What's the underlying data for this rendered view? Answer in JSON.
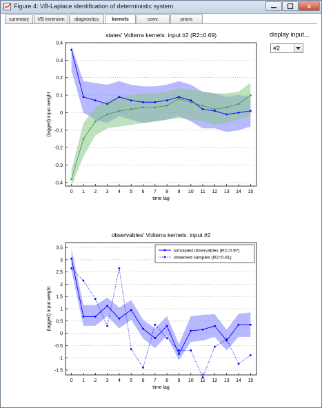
{
  "window": {
    "title": "Figure 4: VB-Laplace identification of deterministic system",
    "close_glyph": "x"
  },
  "tabs": [
    {
      "label": "summary",
      "active": false
    },
    {
      "label": "VB inversion",
      "active": false
    },
    {
      "label": "diagnostics",
      "active": false
    },
    {
      "label": "kernels",
      "active": true
    },
    {
      "label": "conv.",
      "active": false
    },
    {
      "label": "priors",
      "active": false
    }
  ],
  "display_input": {
    "label": "display input...",
    "selected": "#2"
  },
  "colors": {
    "blue": "#0000ff",
    "blue_band": "#8080ff",
    "green": "#4f9a4f",
    "green_band": "#88c888"
  },
  "chart_data": [
    {
      "type": "line",
      "title": "states' Volterra kernels: input #2 (R2=0.69)",
      "xlabel": "time lag",
      "ylabel": "(lagged) input weight",
      "x": [
        0,
        1,
        2,
        3,
        4,
        5,
        6,
        7,
        8,
        9,
        10,
        11,
        12,
        13,
        14,
        15
      ],
      "xlim": [
        -0.5,
        15.5
      ],
      "ylim": [
        -0.42,
        0.4
      ],
      "yticks": [
        -0.4,
        -0.3,
        -0.2,
        -0.1,
        0,
        0.1,
        0.2,
        0.3,
        0.4
      ],
      "ytick_labels": [
        "-0.4",
        "-0.3",
        "-0.2",
        "-0.1",
        "0",
        "0.1",
        "0.2",
        "0.3",
        "0.4"
      ],
      "xtick_labels": [
        "0",
        "1",
        "2",
        "3",
        "4",
        "5",
        "6",
        "7",
        "8",
        "9",
        "10",
        "11",
        "12",
        "13",
        "14",
        "15"
      ],
      "grid": "horizontal dotted",
      "series": [
        {
          "color": "blue",
          "marker": "dot",
          "values": [
            0.36,
            0.09,
            0.07,
            0.05,
            0.09,
            0.07,
            0.06,
            0.06,
            0.07,
            0.09,
            0.07,
            0.02,
            0.01,
            -0.01,
            0.0,
            0.01
          ],
          "lower": [
            0.24,
            0.0,
            -0.04,
            -0.06,
            -0.02,
            -0.04,
            -0.06,
            -0.05,
            -0.04,
            -0.02,
            -0.05,
            -0.09,
            -0.09,
            -0.11,
            -0.1,
            -0.08
          ],
          "upper": [
            0.38,
            0.18,
            0.17,
            0.16,
            0.18,
            0.16,
            0.15,
            0.15,
            0.16,
            0.18,
            0.16,
            0.12,
            0.11,
            0.09,
            0.1,
            0.09
          ]
        },
        {
          "color": "green",
          "marker": "dot",
          "values": [
            -0.38,
            -0.15,
            -0.05,
            -0.01,
            0.01,
            0.02,
            0.03,
            0.03,
            0.04,
            0.08,
            0.06,
            0.04,
            0.02,
            0.03,
            0.05,
            0.1
          ],
          "lower": [
            -0.42,
            -0.25,
            -0.13,
            -0.09,
            -0.08,
            -0.07,
            -0.06,
            -0.05,
            -0.04,
            -0.03,
            -0.04,
            -0.05,
            -0.07,
            -0.06,
            -0.04,
            -0.02
          ],
          "upper": [
            -0.33,
            -0.06,
            0.03,
            0.07,
            0.09,
            0.1,
            0.11,
            0.11,
            0.12,
            0.14,
            0.13,
            0.12,
            0.11,
            0.11,
            0.12,
            0.17
          ]
        }
      ]
    },
    {
      "type": "line",
      "title": "observables' Volterra kernels: input #2",
      "xlabel": "time lag",
      "ylabel": "(lagged) input weight",
      "x": [
        0,
        1,
        2,
        3,
        4,
        5,
        6,
        7,
        8,
        9,
        10,
        11,
        12,
        13,
        14,
        15
      ],
      "xlim": [
        -0.5,
        15.5
      ],
      "ylim": [
        -1.7,
        3.7
      ],
      "yticks": [
        -1.5,
        -1,
        -0.5,
        0,
        0.5,
        1,
        1.5,
        2,
        2.5,
        3,
        3.5
      ],
      "ytick_labels": [
        "-1.5",
        "-1",
        "-0.5",
        "0",
        "0.5",
        "1",
        "1.5",
        "2",
        "2.5",
        "3",
        "3.5"
      ],
      "xtick_labels": [
        "0",
        "1",
        "2",
        "3",
        "4",
        "5",
        "6",
        "7",
        "8",
        "9",
        "10",
        "11",
        "12",
        "13",
        "14",
        "15"
      ],
      "grid": "horizontal dotted",
      "legend": {
        "position": "top-right",
        "entries": [
          "simulated observables (R2=0.97)",
          "observed samples (R2=0.91)"
        ]
      },
      "series": [
        {
          "name": "simulated observables (R2=0.97)",
          "color": "blue",
          "style": "solid",
          "marker": "dot",
          "values": [
            3.05,
            0.68,
            0.68,
            1.12,
            0.6,
            0.95,
            0.18,
            -0.2,
            0.3,
            -0.85,
            0.1,
            0.15,
            0.3,
            -0.3,
            0.35,
            0.35
          ],
          "lower": [
            2.55,
            0.3,
            0.3,
            0.7,
            0.2,
            0.55,
            -0.22,
            -0.6,
            -0.1,
            -1.1,
            -0.35,
            -0.3,
            -0.15,
            -0.7,
            -0.15,
            -0.15
          ],
          "upper": [
            3.45,
            1.15,
            1.15,
            1.45,
            1.05,
            1.35,
            0.55,
            0.2,
            0.7,
            -0.45,
            0.7,
            0.75,
            0.78,
            0.15,
            0.8,
            0.85
          ]
        },
        {
          "name": "observed samples (R2=0.91)",
          "color": "blue",
          "style": "dotted",
          "marker": "dot",
          "values": [
            2.65,
            2.15,
            1.4,
            0.3,
            2.65,
            -0.65,
            -1.4,
            0.35,
            -0.2,
            -0.7,
            -0.7,
            -1.8,
            -0.55,
            -0.25,
            -1.25,
            -0.9
          ]
        }
      ]
    }
  ]
}
